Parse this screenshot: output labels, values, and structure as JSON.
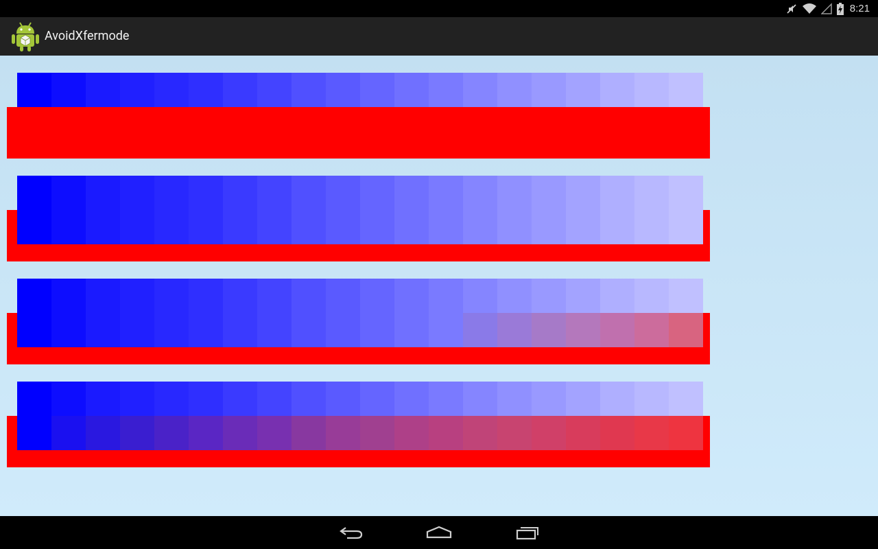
{
  "status_bar": {
    "time": "8:21",
    "icons": [
      "mute-icon",
      "wifi-icon",
      "signal-icon",
      "battery-charging-icon"
    ]
  },
  "action_bar": {
    "app_icon": "android-robot-icon",
    "title": "AvoidXfermode"
  },
  "canvas": {
    "background_colors": [
      "#c3e0f2",
      "#d0ebfb"
    ],
    "rectangle_color": "#ff0000",
    "row_count": 4,
    "tile_count": 20,
    "rows": [
      {
        "blended_from_tile": null,
        "tiles": [
          "#0000ff",
          "#0d0dff",
          "#1a1aff",
          "#2020ff",
          "#2828ff",
          "#2f2fff",
          "#3a3aff",
          "#4444ff",
          "#5050ff",
          "#5a5aff",
          "#6565ff",
          "#7070ff",
          "#7a7aff",
          "#8585ff",
          "#9090ff",
          "#9999ff",
          "#a3a3ff",
          "#afafff",
          "#b8b8ff",
          "#c0c0ff"
        ]
      },
      {
        "blended_from_tile": null,
        "tiles": [
          "#0000ff",
          "#0d0dff",
          "#1a1aff",
          "#2020ff",
          "#2828ff",
          "#2f2fff",
          "#3a3aff",
          "#4444ff",
          "#5050ff",
          "#5a5aff",
          "#6565ff",
          "#7070ff",
          "#7a7aff",
          "#8585ff",
          "#9090ff",
          "#9999ff",
          "#a3a3ff",
          "#afafff",
          "#b8b8ff",
          "#c0c0ff"
        ]
      },
      {
        "blended_from_tile": 13,
        "tiles": [
          "#0000ff",
          "#0d0dff",
          "#1a1aff",
          "#2020ff",
          "#2828ff",
          "#2f2fff",
          "#3a3aff",
          "#4444ff",
          "#5050ff",
          "#5a5aff",
          "#6565ff",
          "#7070ff",
          "#7a7aff",
          "#8585ff",
          "#9090ff",
          "#9999ff",
          "#a3a3ff",
          "#afafff",
          "#b8b8ff",
          "#c0c0ff"
        ],
        "blended_tiles": [
          "#8a7ae8",
          "#9a7ad8",
          "#a67ac8",
          "#b478bc",
          "#c070ae",
          "#cc6c9c",
          "#d86480"
        ]
      },
      {
        "blended_from_tile": 1,
        "tiles": [
          "#0000ff",
          "#0d0dff",
          "#1a1aff",
          "#2020ff",
          "#2828ff",
          "#2f2fff",
          "#3a3aff",
          "#4444ff",
          "#5050ff",
          "#5a5aff",
          "#6565ff",
          "#7070ff",
          "#7a7aff",
          "#8585ff",
          "#9090ff",
          "#9999ff",
          "#a3a3ff",
          "#afafff",
          "#b8b8ff",
          "#c0c0ff"
        ],
        "blended_tiles": [
          "#1a10f0",
          "#2a18e0",
          "#3a1ed0",
          "#4a22c8",
          "#5a26c4",
          "#6a2cb8",
          "#7830b0",
          "#8838a0",
          "#983c98",
          "#a04090",
          "#ae4088",
          "#b84080",
          "#c04478",
          "#c84470",
          "#d04068",
          "#d83c5c",
          "#e03850",
          "#e83848",
          "#ee3440"
        ]
      }
    ]
  },
  "nav_bar": {
    "buttons": [
      "back-icon",
      "home-icon",
      "recents-icon"
    ]
  }
}
